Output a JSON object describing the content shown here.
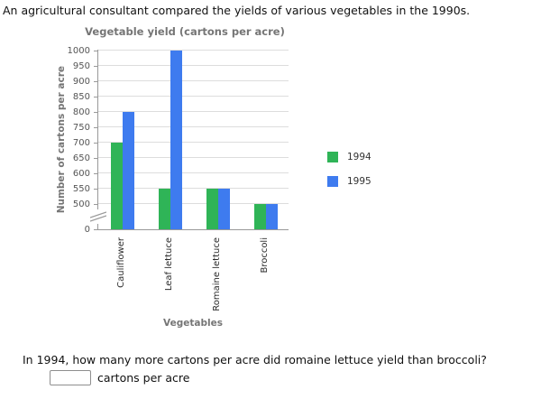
{
  "page": {
    "intro": "An agricultural consultant compared the yields of various vegetables in the 1990s.",
    "question": "In 1994, how many more cartons per acre did romaine lettuce yield than broccoli?",
    "answer_unit": "cartons per acre",
    "answer_value": ""
  },
  "chart_data": {
    "type": "bar",
    "title": "Vegetable yield (cartons per acre)",
    "xlabel": "Vegetables",
    "ylabel": "Number of cartons per acre",
    "categories": [
      "Cauliflower",
      "Leaf lettuce",
      "Romaine lettuce",
      "Broccoli"
    ],
    "series": [
      {
        "name": "1994",
        "color": "#2fb457",
        "values": [
          700,
          550,
          550,
          500
        ]
      },
      {
        "name": "1995",
        "color": "#3e7bef",
        "values": [
          800,
          1000,
          550,
          500
        ]
      }
    ],
    "y_ticks": [
      0,
      500,
      550,
      600,
      650,
      700,
      750,
      800,
      850,
      900,
      950,
      1000
    ],
    "ylim": [
      0,
      1000
    ],
    "axis_break": {
      "between": [
        0,
        500
      ]
    },
    "grid": true,
    "legend_position": "right",
    "axis_color": "#999999",
    "gridline_color": "#dddddd"
  }
}
